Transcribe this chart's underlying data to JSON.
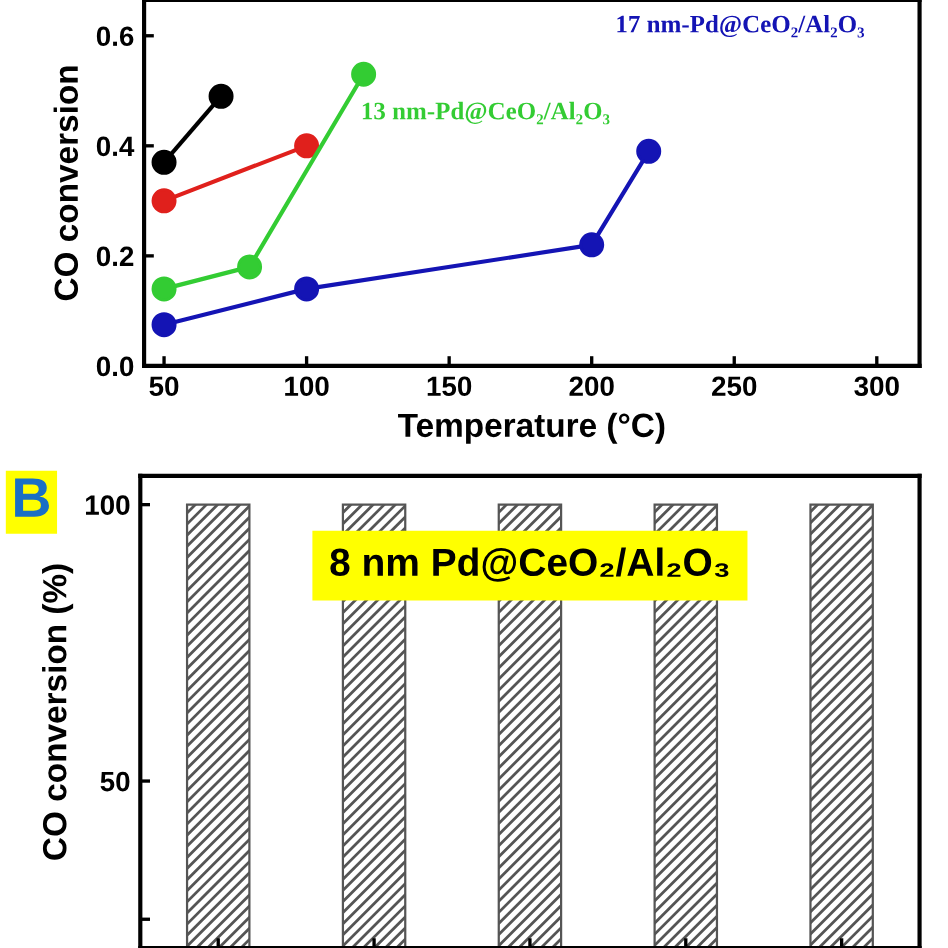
{
  "chart_data": [
    {
      "type": "line",
      "xlabel": "Temperature (°C)",
      "ylabel": "CO conversion",
      "xlim": [
        43,
        315
      ],
      "ylim": [
        0,
        0.665
      ],
      "xticks": [
        50,
        100,
        150,
        200,
        250,
        300
      ],
      "yticks": [
        {
          "value": 0.0,
          "label": "0.0"
        },
        0.2,
        0.4,
        0.6
      ],
      "marker": "circle",
      "line_style": "solid",
      "grid": false,
      "legend": false,
      "series": [
        {
          "color": "#000000",
          "x": [
            50,
            70
          ],
          "values": [
            0.37,
            0.49
          ]
        },
        {
          "color": "#e0201c",
          "x": [
            50,
            100
          ],
          "values": [
            0.3,
            0.4
          ]
        },
        {
          "name": "13 nm-Pd@CeO₂/Al₂O₃",
          "color": "#33cc33",
          "x": [
            50,
            80,
            120
          ],
          "values": [
            0.14,
            0.18,
            0.53
          ]
        },
        {
          "name": "17 nm-Pd@CeO₂/Al₂O₃",
          "color": "#1414b4",
          "x": [
            50,
            100,
            200,
            220
          ],
          "values": [
            0.075,
            0.14,
            0.22,
            0.39
          ]
        }
      ]
    },
    {
      "type": "bar",
      "ylabel": "CO conversion (%)",
      "categories": [
        null,
        null,
        null,
        null,
        null
      ],
      "values": [
        100,
        100,
        100,
        100,
        100
      ],
      "color": "#555555",
      "ylim": [
        19.8,
        105.2
      ],
      "yticks": [
        {
          "value": 25,
          "label": null
        },
        50,
        100
      ],
      "tick_labels": "y",
      "grid": false,
      "legend": false,
      "annotations": [
        "B",
        "8 nm Pd@CeO₂/Al₂O₃"
      ]
    }
  ]
}
